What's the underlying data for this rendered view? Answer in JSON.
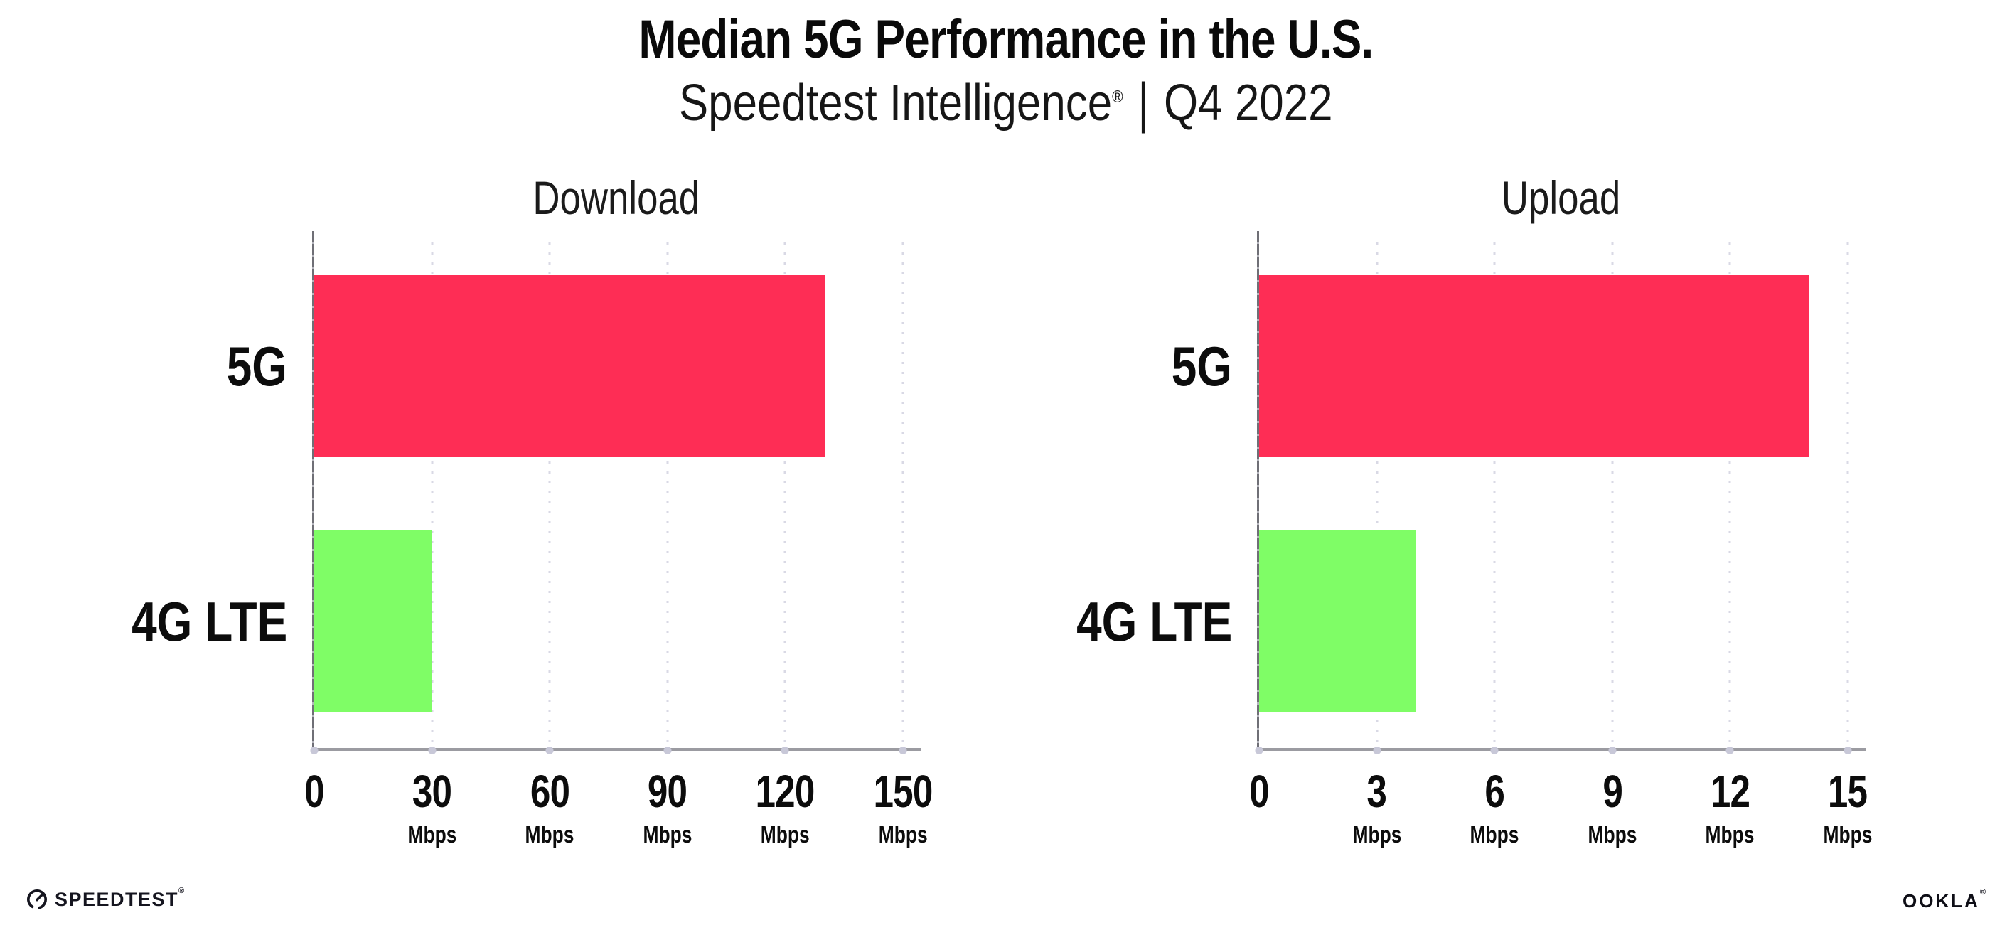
{
  "header": {
    "title": "Median 5G Performance in the U.S.",
    "subtitle_brand": "Speedtest Intelligence",
    "subtitle_registered": "®",
    "subtitle_divider": "|",
    "subtitle_period": "Q4 2022"
  },
  "chart_data": [
    {
      "type": "bar",
      "orientation": "horizontal",
      "title": "Download",
      "categories": [
        "5G",
        "4G LTE"
      ],
      "values": [
        130,
        30
      ],
      "unit": "Mbps",
      "xlabel": "",
      "ylabel": "",
      "xticks": [
        0,
        30,
        60,
        90,
        120,
        150
      ],
      "xlim": [
        0,
        154
      ],
      "grid": "dotted-vertical",
      "legend": "none",
      "bar_colors": [
        "#FE2D55",
        "#7FFD66"
      ]
    },
    {
      "type": "bar",
      "orientation": "horizontal",
      "title": "Upload",
      "categories": [
        "5G",
        "4G LTE"
      ],
      "values": [
        14,
        4
      ],
      "unit": "Mbps",
      "xlabel": "",
      "ylabel": "",
      "xticks": [
        0,
        3,
        6,
        9,
        12,
        15
      ],
      "xlim": [
        0,
        15.4
      ],
      "grid": "dotted-vertical",
      "legend": "none",
      "bar_colors": [
        "#FE2D55",
        "#7FFD66"
      ]
    }
  ],
  "colors": {
    "bar_5g": "#FE2D55",
    "bar_4g_lte": "#7FFD66",
    "axis": "#9B9BA1",
    "gridline": "#D9D9E5",
    "tick_dot": "#C8C8D8",
    "text": "#111111"
  },
  "footer": {
    "speedtest_label": "SPEEDTEST",
    "speedtest_mark": "®",
    "ookla_label": "OOKLA",
    "ookla_mark": "®"
  }
}
